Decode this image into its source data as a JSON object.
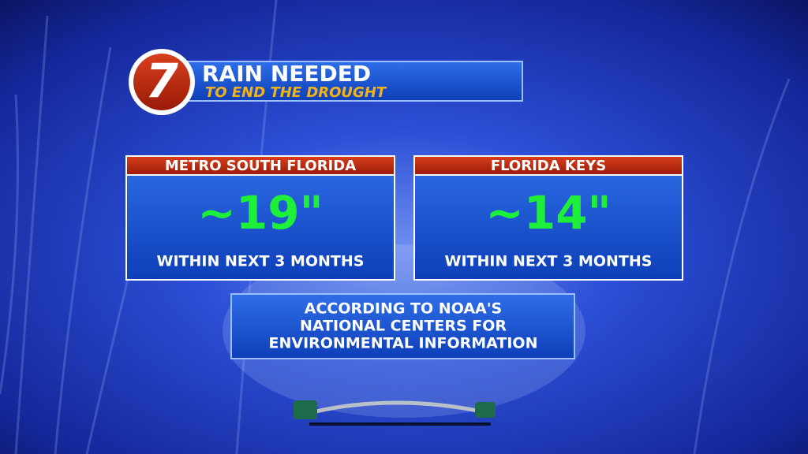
{
  "header": {
    "logo": "7",
    "title": "RAIN NEEDED",
    "subtitle": "TO END THE DROUGHT"
  },
  "panels": [
    {
      "label": "METRO SOUTH FLORIDA",
      "amount": "~19\"",
      "note": "WITHIN NEXT 3 MONTHS"
    },
    {
      "label": "FLORIDA KEYS",
      "amount": "~14\"",
      "note": "WITHIN NEXT 3 MONTHS"
    }
  ],
  "source": {
    "lines": [
      "ACCORDING TO NOAA'S",
      "NATIONAL CENTERS FOR",
      "ENVIRONMENTAL INFORMATION"
    ]
  }
}
